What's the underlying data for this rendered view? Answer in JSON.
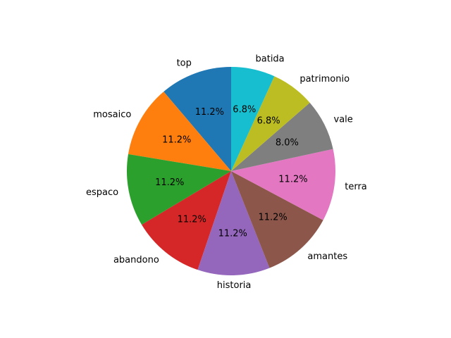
{
  "chart_data": {
    "type": "pie",
    "title": "",
    "start_angle_deg": 90,
    "direction": "counterclockwise",
    "slices": [
      {
        "label": "top",
        "value": 11.2,
        "pct_label": "11.2%",
        "color": "#1f77b4"
      },
      {
        "label": "mosaico",
        "value": 11.2,
        "pct_label": "11.2%",
        "color": "#ff7f0e"
      },
      {
        "label": "espaco",
        "value": 11.2,
        "pct_label": "11.2%",
        "color": "#2ca02c"
      },
      {
        "label": "abandono",
        "value": 11.2,
        "pct_label": "11.2%",
        "color": "#d62728"
      },
      {
        "label": "historia",
        "value": 11.2,
        "pct_label": "11.2%",
        "color": "#9467bd"
      },
      {
        "label": "amantes",
        "value": 11.2,
        "pct_label": "11.2%",
        "color": "#8c564b"
      },
      {
        "label": "terra",
        "value": 11.2,
        "pct_label": "11.2%",
        "color": "#e377c2"
      },
      {
        "label": "vale",
        "value": 8.0,
        "pct_label": "8.0%",
        "color": "#7f7f7f"
      },
      {
        "label": "patrimonio",
        "value": 6.8,
        "pct_label": "6.8%",
        "color": "#bcbd22"
      },
      {
        "label": "batida",
        "value": 6.8,
        "pct_label": "6.8%",
        "color": "#17becf"
      }
    ]
  }
}
